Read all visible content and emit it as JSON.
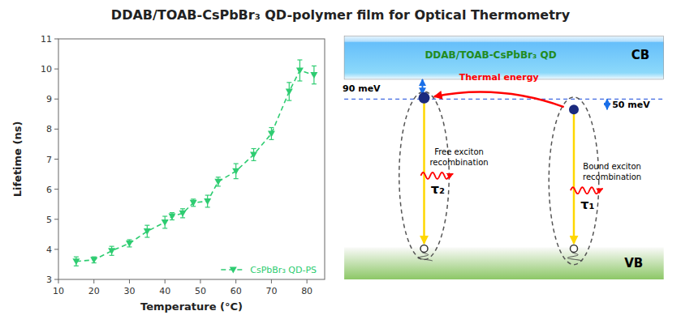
{
  "chart_data": {
    "type": "line",
    "title": "DDAB/TOAB-CsPbBr₃ QD-polymer film for Optical Thermometry",
    "x_label": "Temperature (°C)",
    "y_label": "Lifetime (ns)",
    "x": [
      15,
      20,
      25,
      30,
      35,
      40,
      42,
      45,
      48,
      52,
      55,
      60,
      65,
      70,
      75,
      78,
      82
    ],
    "series": [
      {
        "name": "CsPbBr₃ QD-PS",
        "color": "#2ecc71",
        "marker": "triangle-down",
        "line_style": "dashed",
        "values": [
          3.6,
          3.65,
          3.95,
          4.2,
          4.6,
          4.9,
          5.1,
          5.2,
          5.55,
          5.6,
          6.25,
          6.6,
          7.15,
          7.85,
          9.25,
          9.95,
          9.8
        ],
        "errors": [
          0.15,
          0.1,
          0.15,
          0.12,
          0.2,
          0.2,
          0.12,
          0.15,
          0.12,
          0.2,
          0.15,
          0.25,
          0.2,
          0.2,
          0.3,
          0.35,
          0.3
        ]
      }
    ],
    "xlim": [
      10,
      85
    ],
    "ylim": [
      3,
      11
    ],
    "xticks": [
      10,
      20,
      30,
      40,
      50,
      60,
      70,
      80
    ],
    "yticks": [
      3,
      4,
      5,
      6,
      7,
      8,
      9,
      10,
      11
    ],
    "grid": false,
    "legend": "lower right",
    "annotations": [
      "DDAB/TOAB-CsPbBr₃ QD",
      "CB",
      "VB",
      "90 meV",
      "50 meV",
      "Thermal energy",
      "τ₂",
      "τ₁",
      "Free exciton\nrecombination",
      "Bound exciton\nrecombination"
    ]
  }
}
